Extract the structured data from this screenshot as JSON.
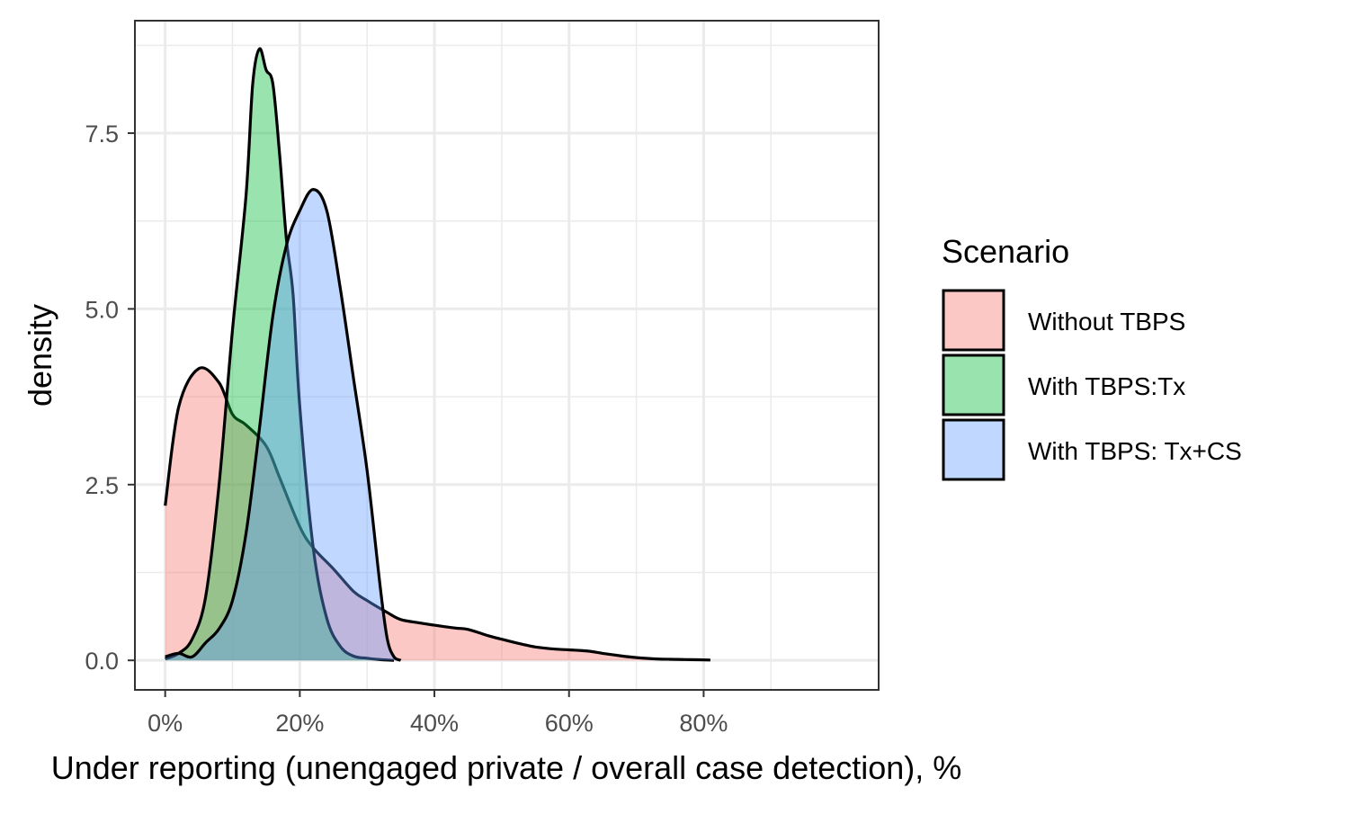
{
  "chart_data": {
    "type": "area",
    "xlabel": "Under reporting (unengaged private / overall case detection), %",
    "ylabel": "density",
    "xlim": [
      -0.045,
      1.06
    ],
    "ylim": [
      -0.42,
      9.1
    ],
    "x_ticks": [
      0,
      0.2,
      0.4,
      0.6,
      0.8
    ],
    "x_tick_labels": [
      "0%",
      "20%",
      "40%",
      "60%",
      "80%"
    ],
    "y_ticks": [
      0,
      2.5,
      5.0,
      7.5
    ],
    "y_tick_labels": [
      "0.0",
      "2.5",
      "5.0",
      "7.5"
    ],
    "grid": true,
    "legend": {
      "title": "Scenario",
      "position": "right"
    },
    "series": [
      {
        "name": "Without TBPS",
        "fill": "#F8766D",
        "x": [
          0.0,
          0.02,
          0.05,
          0.08,
          0.1,
          0.12,
          0.15,
          0.17,
          0.2,
          0.22,
          0.25,
          0.28,
          0.3,
          0.33,
          0.35,
          0.38,
          0.4,
          0.43,
          0.45,
          0.48,
          0.5,
          0.53,
          0.55,
          0.58,
          0.6,
          0.63,
          0.65,
          0.68,
          0.7,
          0.73,
          0.75,
          0.78,
          0.81
        ],
        "values": [
          2.2,
          3.6,
          4.15,
          3.95,
          3.5,
          3.35,
          3.05,
          2.6,
          1.9,
          1.6,
          1.3,
          0.98,
          0.85,
          0.68,
          0.58,
          0.53,
          0.5,
          0.46,
          0.44,
          0.35,
          0.3,
          0.23,
          0.19,
          0.16,
          0.15,
          0.13,
          0.1,
          0.06,
          0.04,
          0.02,
          0.015,
          0.01,
          0.005
        ]
      },
      {
        "name": "With TBPS:Tx",
        "fill": "#00BA38",
        "x": [
          0.0,
          0.02,
          0.04,
          0.06,
          0.08,
          0.1,
          0.12,
          0.13,
          0.14,
          0.15,
          0.16,
          0.17,
          0.18,
          0.19,
          0.2,
          0.22,
          0.24,
          0.26,
          0.28,
          0.3,
          0.32,
          0.34
        ],
        "values": [
          0.02,
          0.1,
          0.3,
          0.9,
          2.5,
          4.7,
          6.6,
          8.2,
          8.7,
          8.4,
          8.2,
          7.2,
          6.0,
          5.2,
          3.6,
          1.6,
          0.6,
          0.2,
          0.06,
          0.03,
          0.01,
          0.0
        ]
      },
      {
        "name": "With TBPS: Tx+CS",
        "fill": "#619CFF",
        "x": [
          0.0,
          0.02,
          0.04,
          0.06,
          0.08,
          0.1,
          0.12,
          0.14,
          0.16,
          0.18,
          0.2,
          0.22,
          0.24,
          0.26,
          0.28,
          0.3,
          0.32,
          0.33,
          0.34,
          0.35
        ],
        "values": [
          0.05,
          0.1,
          0.05,
          0.25,
          0.45,
          0.85,
          1.8,
          3.3,
          4.9,
          5.9,
          6.4,
          6.7,
          6.4,
          5.3,
          4.0,
          2.7,
          1.0,
          0.3,
          0.05,
          0.0
        ]
      }
    ]
  }
}
